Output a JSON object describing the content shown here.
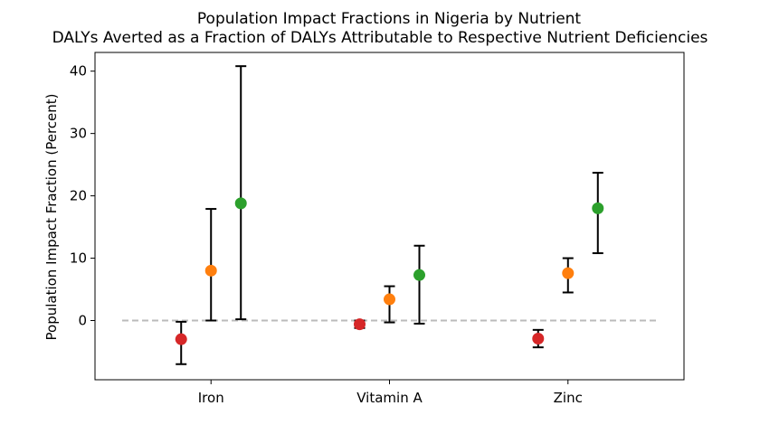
{
  "chart_data": {
    "type": "scatter",
    "title": "Population Impact Fractions in Nigeria by Nutrient",
    "subtitle": "DALYs Averted as a Fraction of DALYs Attributable to Respective Nutrient Deficiencies",
    "xlabel": "",
    "ylabel": "Population Impact Fraction (Percent)",
    "categories": [
      "Iron",
      "Vitamin A",
      "Zinc"
    ],
    "ylim": [
      -9.5,
      43
    ],
    "yticks": [
      0,
      10,
      20,
      30,
      40
    ],
    "reference_line": {
      "y": 0,
      "style": "dashed",
      "color": "#bbbbbb"
    },
    "grid": false,
    "series": [
      {
        "color": "#d62728",
        "values": [
          -3.0,
          -0.6,
          -2.9
        ],
        "lower": [
          -7.0,
          -1.2,
          -4.3
        ],
        "upper": [
          -0.2,
          0.0,
          -1.5
        ]
      },
      {
        "color": "#ff7f0e",
        "values": [
          8.0,
          3.4,
          7.6
        ],
        "lower": [
          0.0,
          -0.3,
          4.5
        ],
        "upper": [
          17.9,
          5.5,
          10.0
        ]
      },
      {
        "color": "#2ca02c",
        "values": [
          18.8,
          7.3,
          18.0
        ],
        "lower": [
          0.2,
          -0.5,
          10.8
        ],
        "upper": [
          40.8,
          12.0,
          23.7
        ]
      }
    ]
  }
}
